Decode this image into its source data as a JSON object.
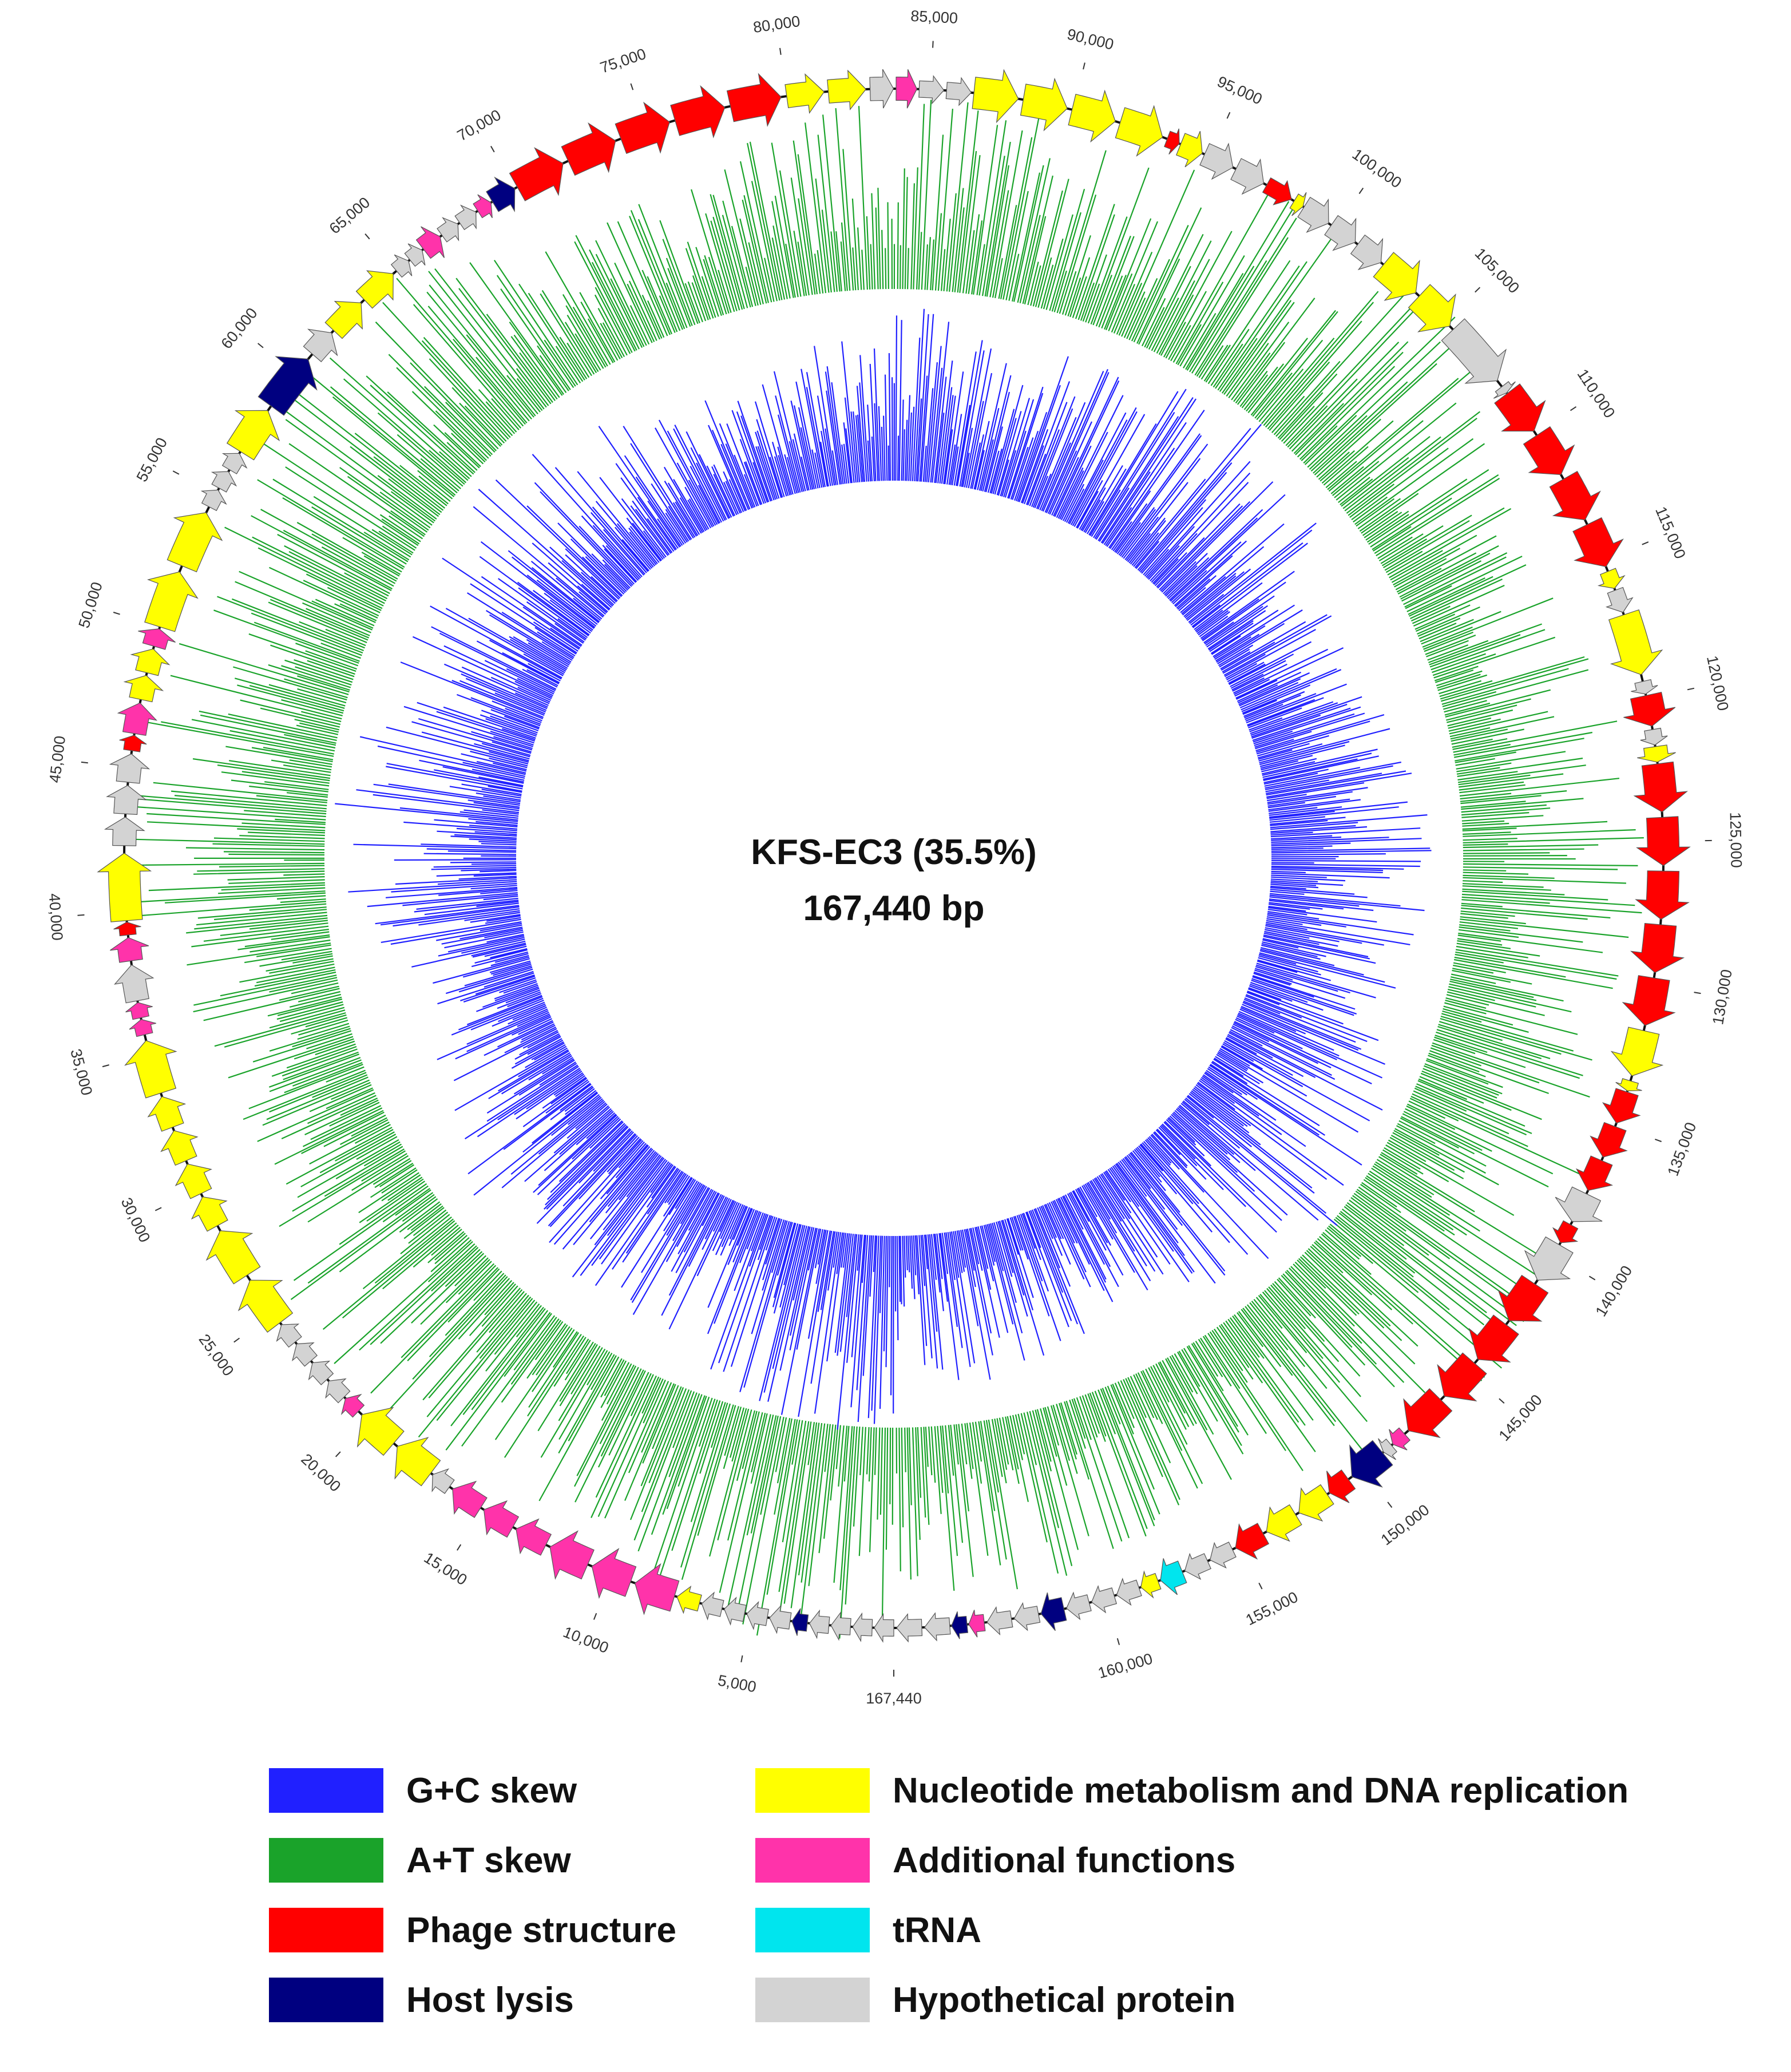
{
  "genome": {
    "name_line": "KFS-EC3 (35.5%)",
    "size_line": "167,440 bp",
    "length_bp": 167440
  },
  "colors": {
    "gc_skew": "#2020ff",
    "at_skew": "#1aa32a",
    "phage_structure": "#ff0000",
    "host_lysis": "#000080",
    "nucleotide_metabolism": "#ffff00",
    "additional_functions": "#ff33aa",
    "trna": "#00e5ee",
    "hypothetical": "#d3d3d3",
    "backbone": "#111111"
  },
  "position_labels": [
    "167,440",
    "5,000",
    "10,000",
    "15,000",
    "20,000",
    "25,000",
    "30,000",
    "35,000",
    "40,000",
    "45,000",
    "50,000",
    "55,000",
    "60,000",
    "65,000",
    "70,000",
    "75,000",
    "80,000",
    "85,000",
    "90,000",
    "95,000",
    "100,000",
    "105,000",
    "110,000",
    "115,000",
    "120,000",
    "125,000",
    "130,000",
    "135,000",
    "140,000",
    "145,000",
    "150,000",
    "155,000",
    "160,000"
  ],
  "gene_segments": [
    {
      "start": 0,
      "end": 3000,
      "category": "hypothetical",
      "size": "small"
    },
    {
      "start": 3000,
      "end": 3600,
      "category": "host_lysis",
      "size": "small"
    },
    {
      "start": 3600,
      "end": 6800,
      "category": "hypothetical",
      "size": "small"
    },
    {
      "start": 6800,
      "end": 7700,
      "category": "nucleotide_metabolism",
      "size": "small"
    },
    {
      "start": 7700,
      "end": 12500,
      "category": "additional_functions",
      "size": "large"
    },
    {
      "start": 12500,
      "end": 16400,
      "category": "additional_functions",
      "size": "medium"
    },
    {
      "start": 16400,
      "end": 17200,
      "category": "hypothetical",
      "size": "small"
    },
    {
      "start": 17200,
      "end": 20500,
      "category": "nucleotide_metabolism",
      "size": "large"
    },
    {
      "start": 20500,
      "end": 21200,
      "category": "additional_functions",
      "size": "small"
    },
    {
      "start": 21200,
      "end": 24600,
      "category": "hypothetical",
      "size": "small"
    },
    {
      "start": 24600,
      "end": 28600,
      "category": "nucleotide_metabolism",
      "size": "large"
    },
    {
      "start": 28600,
      "end": 33600,
      "category": "nucleotide_metabolism",
      "size": "medium"
    },
    {
      "start": 33600,
      "end": 35700,
      "category": "nucleotide_metabolism",
      "size": "large"
    },
    {
      "start": 35700,
      "end": 36900,
      "category": "additional_functions",
      "size": "small"
    },
    {
      "start": 36900,
      "end": 38300,
      "category": "hypothetical",
      "size": "medium"
    },
    {
      "start": 38300,
      "end": 39200,
      "category": "additional_functions",
      "size": "medium"
    },
    {
      "start": 39200,
      "end": 39700,
      "category": "phage_structure",
      "size": "small"
    },
    {
      "start": 39700,
      "end": 42300,
      "category": "nucleotide_metabolism",
      "size": "large"
    },
    {
      "start": 42300,
      "end": 45600,
      "category": "hypothetical",
      "size": "medium"
    },
    {
      "start": 45600,
      "end": 46200,
      "category": "phage_structure",
      "size": "small"
    },
    {
      "start": 46200,
      "end": 47400,
      "category": "additional_functions",
      "size": "medium"
    },
    {
      "start": 47400,
      "end": 49300,
      "category": "nucleotide_metabolism",
      "size": "medium"
    },
    {
      "start": 49300,
      "end": 50000,
      "category": "additional_functions",
      "size": "medium"
    },
    {
      "start": 50000,
      "end": 54500,
      "category": "nucleotide_metabolism",
      "size": "large"
    },
    {
      "start": 54500,
      "end": 56700,
      "category": "hypothetical",
      "size": "small"
    },
    {
      "start": 56700,
      "end": 58600,
      "category": "nucleotide_metabolism",
      "size": "large"
    },
    {
      "start": 58600,
      "end": 60900,
      "category": "host_lysis",
      "size": "large"
    },
    {
      "start": 60900,
      "end": 62000,
      "category": "hypothetical",
      "size": "medium"
    },
    {
      "start": 62000,
      "end": 65000,
      "category": "nucleotide_metabolism",
      "size": "medium"
    },
    {
      "start": 65000,
      "end": 66200,
      "category": "hypothetical",
      "size": "small"
    },
    {
      "start": 66200,
      "end": 67000,
      "category": "additional_functions",
      "size": "medium"
    },
    {
      "start": 67000,
      "end": 68500,
      "category": "hypothetical",
      "size": "small"
    },
    {
      "start": 68500,
      "end": 69100,
      "category": "additional_functions",
      "size": "small"
    },
    {
      "start": 69100,
      "end": 70100,
      "category": "host_lysis",
      "size": "medium"
    },
    {
      "start": 70100,
      "end": 80000,
      "category": "phage_structure",
      "size": "large"
    },
    {
      "start": 80000,
      "end": 82900,
      "category": "nucleotide_metabolism",
      "size": "medium"
    },
    {
      "start": 82900,
      "end": 83800,
      "category": "hypothetical",
      "size": "medium"
    },
    {
      "start": 83800,
      "end": 84600,
      "category": "additional_functions",
      "size": "medium"
    },
    {
      "start": 84600,
      "end": 86500,
      "category": "hypothetical",
      "size": "small"
    },
    {
      "start": 86500,
      "end": 93400,
      "category": "nucleotide_metabolism",
      "size": "large"
    },
    {
      "start": 93400,
      "end": 93900,
      "category": "phage_structure",
      "size": "small"
    },
    {
      "start": 93900,
      "end": 94800,
      "category": "nucleotide_metabolism",
      "size": "medium"
    },
    {
      "start": 94800,
      "end": 97200,
      "category": "hypothetical",
      "size": "medium"
    },
    {
      "start": 97200,
      "end": 98300,
      "category": "phage_structure",
      "size": "small"
    },
    {
      "start": 98300,
      "end": 98700,
      "category": "nucleotide_metabolism",
      "size": "small"
    },
    {
      "start": 98700,
      "end": 102100,
      "category": "hypothetical",
      "size": "medium"
    },
    {
      "start": 102100,
      "end": 105400,
      "category": "nucleotide_metabolism",
      "size": "large"
    },
    {
      "start": 105400,
      "end": 108000,
      "category": "hypothetical",
      "size": "large"
    },
    {
      "start": 108000,
      "end": 108300,
      "category": "hypothetical",
      "size": "small"
    },
    {
      "start": 108300,
      "end": 115400,
      "category": "phage_structure",
      "size": "large"
    },
    {
      "start": 115400,
      "end": 116100,
      "category": "nucleotide_metabolism",
      "size": "small"
    },
    {
      "start": 116100,
      "end": 117000,
      "category": "hypothetical",
      "size": "small"
    },
    {
      "start": 117000,
      "end": 119400,
      "category": "nucleotide_metabolism",
      "size": "large"
    },
    {
      "start": 119400,
      "end": 119900,
      "category": "hypothetical",
      "size": "small"
    },
    {
      "start": 119900,
      "end": 121100,
      "category": "phage_structure",
      "size": "large"
    },
    {
      "start": 121100,
      "end": 121700,
      "category": "hypothetical",
      "size": "small"
    },
    {
      "start": 121700,
      "end": 122300,
      "category": "nucleotide_metabolism",
      "size": "medium"
    },
    {
      "start": 122300,
      "end": 131600,
      "category": "phage_structure",
      "size": "large"
    },
    {
      "start": 131600,
      "end": 133400,
      "category": "nucleotide_metabolism",
      "size": "large"
    },
    {
      "start": 133400,
      "end": 133800,
      "category": "nucleotide_metabolism",
      "size": "small"
    },
    {
      "start": 133800,
      "end": 137600,
      "category": "phage_structure",
      "size": "medium"
    },
    {
      "start": 137600,
      "end": 138800,
      "category": "hypothetical",
      "size": "large"
    },
    {
      "start": 138800,
      "end": 139600,
      "category": "phage_structure",
      "size": "small"
    },
    {
      "start": 139600,
      "end": 141200,
      "category": "hypothetical",
      "size": "large"
    },
    {
      "start": 141200,
      "end": 148100,
      "category": "phage_structure",
      "size": "large"
    },
    {
      "start": 148100,
      "end": 148700,
      "category": "additional_functions",
      "size": "small"
    },
    {
      "start": 148700,
      "end": 149100,
      "category": "hypothetical",
      "size": "small"
    },
    {
      "start": 149100,
      "end": 150600,
      "category": "host_lysis",
      "size": "large"
    },
    {
      "start": 150600,
      "end": 151500,
      "category": "phage_structure",
      "size": "medium"
    },
    {
      "start": 151500,
      "end": 154100,
      "category": "nucleotide_metabolism",
      "size": "medium"
    },
    {
      "start": 154100,
      "end": 155300,
      "category": "phage_structure",
      "size": "medium"
    },
    {
      "start": 155300,
      "end": 157200,
      "category": "hypothetical",
      "size": "small"
    },
    {
      "start": 157200,
      "end": 158100,
      "category": "trna",
      "size": "medium"
    },
    {
      "start": 158100,
      "end": 158800,
      "category": "nucleotide_metabolism",
      "size": "small"
    },
    {
      "start": 158800,
      "end": 161500,
      "category": "hypothetical",
      "size": "small"
    },
    {
      "start": 161500,
      "end": 162400,
      "category": "host_lysis",
      "size": "medium"
    },
    {
      "start": 162400,
      "end": 164300,
      "category": "hypothetical",
      "size": "small"
    },
    {
      "start": 164300,
      "end": 164900,
      "category": "additional_functions",
      "size": "small"
    },
    {
      "start": 164900,
      "end": 165500,
      "category": "host_lysis",
      "size": "small"
    },
    {
      "start": 165500,
      "end": 167440,
      "category": "hypothetical",
      "size": "small"
    }
  ],
  "legend": {
    "items": [
      {
        "key": "gc_skew",
        "label": "G+C skew"
      },
      {
        "key": "at_skew",
        "label": "A+T skew"
      },
      {
        "key": "phage_structure",
        "label": "Phage structure"
      },
      {
        "key": "host_lysis",
        "label": "Host lysis"
      },
      {
        "key": "nucleotide_metabolism",
        "label": "Nucleotide metabolism and DNA replication"
      },
      {
        "key": "additional_functions",
        "label": "Additional functions"
      },
      {
        "key": "trna",
        "label": "tRNA"
      },
      {
        "key": "hypothetical",
        "label": "Hypothetical protein"
      }
    ]
  }
}
